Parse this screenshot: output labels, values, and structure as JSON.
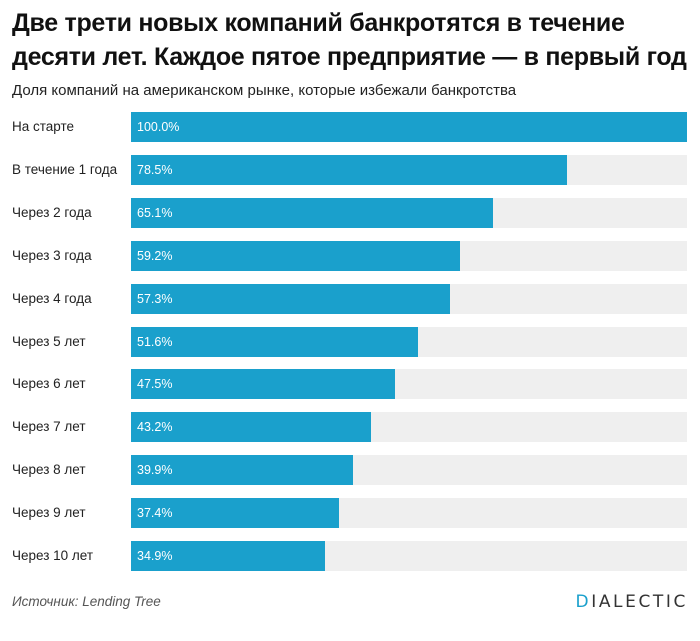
{
  "title": "Две трети новых компаний банкротятся в течение десяти лет. Каждое пятое предприятие — в первый год",
  "subtitle": "Доля компаний на американском рынке, которые избежали банкротства",
  "source": "Источник: Lending Tree",
  "brand": {
    "first_letter": "D",
    "rest": "IALECTIC"
  },
  "colors": {
    "bar": "#1aa0cc",
    "track": "#efefef"
  },
  "chart_data": {
    "type": "bar",
    "orientation": "horizontal",
    "categories": [
      "На старте",
      "В течение 1 года",
      "Через 2 года",
      "Через 3 года",
      "Через 4 года",
      "Через 5 лет",
      "Через 6 лет",
      "Через 7 лет",
      "Через 8 лет",
      "Через 9 лет",
      "Через 10 лет"
    ],
    "values": [
      100.0,
      78.5,
      65.1,
      59.2,
      57.3,
      51.6,
      47.5,
      43.2,
      39.9,
      37.4,
      34.9
    ],
    "labels": [
      "100.0%",
      "78.5%",
      "65.1%",
      "59.2%",
      "57.3%",
      "51.6%",
      "47.5%",
      "43.2%",
      "39.9%",
      "37.4%",
      "34.9%"
    ],
    "xlim": [
      0,
      100
    ],
    "grid": false
  }
}
